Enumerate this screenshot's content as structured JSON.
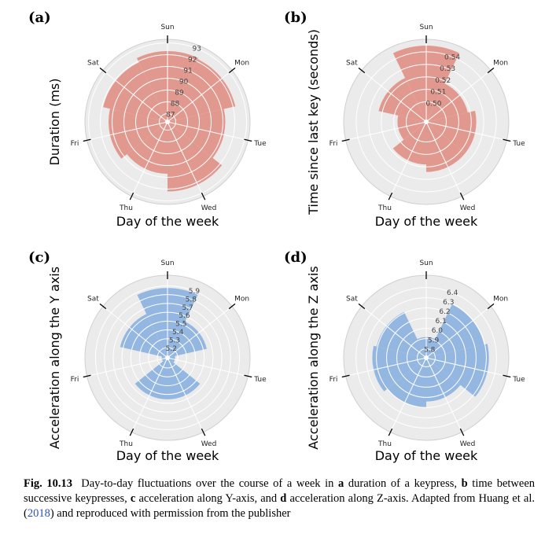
{
  "chart_data": [
    {
      "type": "polar-bar",
      "panel": "(a)",
      "ylabel": "Duration (ms)",
      "xlabel": "Day of the week",
      "categories": [
        "Sun",
        "Mon",
        "Tue",
        "Wed",
        "Thu",
        "Fri",
        "Sat"
      ],
      "values": [
        92.3,
        92.2,
        91.2,
        92.2,
        90.7,
        91.3,
        91.9
      ],
      "rlim": [
        86.3,
        93.3
      ],
      "rticks": [
        87,
        88,
        89,
        90,
        91,
        92,
        93
      ],
      "rtick_labels": [
        "87",
        "88",
        "89",
        "90",
        "91",
        "92",
        "93"
      ],
      "color": "#e0958a",
      "grid": true
    },
    {
      "type": "polar-bar",
      "panel": "(b)",
      "ylabel": "Time since last key (seconds)",
      "xlabel": "Day of the week",
      "categories": [
        "Sun",
        "Mon",
        "Tue",
        "Wed",
        "Thu",
        "Fri",
        "Sat"
      ],
      "values": [
        0.545,
        0.518,
        0.524,
        0.524,
        0.518,
        0.507,
        0.523
      ],
      "rlim": [
        0.484,
        0.55
      ],
      "rticks": [
        0.5,
        0.51,
        0.52,
        0.53,
        0.54
      ],
      "rtick_labels": [
        "0.50",
        "0.51",
        "0.52",
        "0.53",
        "0.54"
      ],
      "color": "#e0958a",
      "grid": true
    },
    {
      "type": "polar-bar",
      "panel": "(c)",
      "ylabel": "Acceleration along the Y axis",
      "xlabel": "Day of the week",
      "categories": [
        "Sun",
        "Mon",
        "Tue",
        "Wed",
        "Thu",
        "Fri",
        "Sat"
      ],
      "values": [
        5.875,
        5.54,
        5.17,
        5.555,
        5.555,
        5.15,
        5.635
      ],
      "rlim": [
        5.084,
        6.02
      ],
      "rticks": [
        5.2,
        5.3,
        5.4,
        5.5,
        5.6,
        5.7,
        5.8,
        5.9
      ],
      "rtick_labels": [
        "5.2",
        "5.3",
        "5.4",
        "5.5",
        "5.6",
        "5.7",
        "5.8",
        "5.9"
      ],
      "color": "#8fb4e0",
      "grid": true
    },
    {
      "type": "polar-bar",
      "panel": "(d)",
      "ylabel": "Acceleration along the Z axis",
      "xlabel": "Day of the week",
      "categories": [
        "Sun",
        "Mon",
        "Tue",
        "Wed",
        "Thu",
        "Fri",
        "Sat"
      ],
      "values": [
        5.915,
        6.292,
        6.325,
        6.14,
        6.195,
        6.24,
        6.21
      ],
      "rlim": [
        5.712,
        6.52
      ],
      "rticks": [
        5.8,
        5.9,
        6.0,
        6.1,
        6.2,
        6.3,
        6.4
      ],
      "rtick_labels": [
        "5.8",
        "5.9",
        "6.0",
        "6.1",
        "6.2",
        "6.3",
        "6.4"
      ],
      "color": "#8fb4e0",
      "grid": true
    }
  ],
  "caption": {
    "fig_num": "Fig. 10.13",
    "text_1": "Day-to-day fluctuations over the course of a week in ",
    "bold_a": "a",
    "text_2": " duration of a keypress, ",
    "bold_b": "b",
    "text_3": " time between successive keypresses, ",
    "bold_c": "c",
    "text_4": " acceleration along Y-axis, and ",
    "bold_d": "d",
    "text_5": " acceleration along Z-axis. Adapted from Huang et al. (",
    "cite": "2018",
    "text_6": ") and reproduced with permission from the publisher"
  }
}
